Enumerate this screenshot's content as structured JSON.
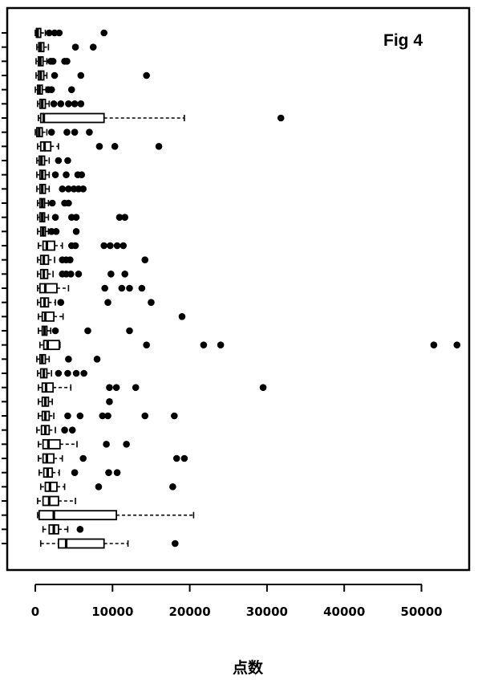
{
  "chart_data": {
    "type": "boxplot",
    "orientation": "horizontal",
    "annotation": "Fig 4",
    "xlabel": "点数",
    "xlim": [
      0,
      55000
    ],
    "xticks": [
      0,
      10000,
      20000,
      30000,
      40000,
      50000
    ],
    "xtick_labels": [
      "0",
      "10000",
      "20000",
      "30000",
      "40000",
      "50000"
    ],
    "grid": false,
    "legend": "none",
    "groups": [
      {
        "whisker_low": 0,
        "q1": 150,
        "median": 300,
        "q3": 700,
        "whisker_high": 1300,
        "outliers": [
          1800,
          2500,
          3100,
          8900
        ]
      },
      {
        "whisker_low": 200,
        "q1": 450,
        "median": 700,
        "q3": 1100,
        "whisker_high": 1700,
        "outliers": [
          5200,
          7500
        ]
      },
      {
        "whisker_low": 100,
        "q1": 400,
        "median": 650,
        "q3": 1000,
        "whisker_high": 1500,
        "outliers": [
          2000,
          2300,
          3800,
          4100
        ]
      },
      {
        "whisker_low": 100,
        "q1": 400,
        "median": 700,
        "q3": 1100,
        "whisker_high": 1500,
        "outliers": [
          2500,
          5900,
          14400
        ]
      },
      {
        "whisker_low": 0,
        "q1": 300,
        "median": 550,
        "q3": 900,
        "whisker_high": 1400,
        "outliers": [
          1700,
          2100,
          4700
        ]
      },
      {
        "whisker_low": 300,
        "q1": 600,
        "median": 900,
        "q3": 1300,
        "whisker_high": 1800,
        "outliers": [
          2400,
          3300,
          4300,
          5100,
          5900
        ]
      },
      {
        "whisker_low": 400,
        "q1": 700,
        "median": 1100,
        "q3": 8900,
        "whisker_high": 19300,
        "outliers": [
          31800
        ]
      },
      {
        "whisker_low": 0,
        "q1": 200,
        "median": 500,
        "q3": 900,
        "whisker_high": 1500,
        "outliers": [
          2100,
          4100,
          5100,
          7000
        ]
      },
      {
        "whisker_low": 300,
        "q1": 700,
        "median": 1200,
        "q3": 2000,
        "whisker_high": 3000,
        "outliers": [
          8300,
          10300,
          16000
        ]
      },
      {
        "whisker_low": 200,
        "q1": 500,
        "median": 800,
        "q3": 1200,
        "whisker_high": 1800,
        "outliers": [
          3000,
          4200
        ]
      },
      {
        "whisker_low": 200,
        "q1": 600,
        "median": 900,
        "q3": 1300,
        "whisker_high": 1800,
        "outliers": [
          2600,
          4000,
          5500,
          6000
        ]
      },
      {
        "whisker_low": 200,
        "q1": 600,
        "median": 900,
        "q3": 1300,
        "whisker_high": 1800,
        "outliers": [
          3500,
          4300,
          5000,
          5600,
          6200
        ]
      },
      {
        "whisker_low": 300,
        "q1": 600,
        "median": 900,
        "q3": 1200,
        "whisker_high": 1700,
        "outliers": [
          2200,
          3800,
          4300
        ]
      },
      {
        "whisker_low": 300,
        "q1": 600,
        "median": 900,
        "q3": 1200,
        "whisker_high": 1700,
        "outliers": [
          2600,
          4700,
          5300,
          10900,
          11600
        ]
      },
      {
        "whisker_low": 300,
        "q1": 700,
        "median": 1000,
        "q3": 1300,
        "whisker_high": 1700,
        "outliers": [
          2100,
          2700,
          5300
        ]
      },
      {
        "whisker_low": 400,
        "q1": 1000,
        "median": 1500,
        "q3": 2500,
        "whisker_high": 3500,
        "outliers": [
          4700,
          5200,
          8900,
          9700,
          10600,
          11400
        ]
      },
      {
        "whisker_low": 300,
        "q1": 700,
        "median": 1100,
        "q3": 1700,
        "whisker_high": 2500,
        "outliers": [
          3500,
          4000,
          4500,
          14200
        ]
      },
      {
        "whisker_low": 300,
        "q1": 700,
        "median": 1100,
        "q3": 1600,
        "whisker_high": 2300,
        "outliers": [
          3500,
          4000,
          4600,
          5600,
          9800,
          11600
        ]
      },
      {
        "whisker_low": 300,
        "q1": 600,
        "median": 1300,
        "q3": 2800,
        "whisker_high": 4300,
        "outliers": [
          9000,
          11200,
          12200,
          13800
        ]
      },
      {
        "whisker_low": 300,
        "q1": 700,
        "median": 1200,
        "q3": 1700,
        "whisker_high": 2600,
        "outliers": [
          3300,
          9400,
          15000
        ]
      },
      {
        "whisker_low": 400,
        "q1": 900,
        "median": 1300,
        "q3": 2400,
        "whisker_high": 3600,
        "outliers": [
          19000
        ]
      },
      {
        "whisker_low": 400,
        "q1": 900,
        "median": 1200,
        "q3": 1500,
        "whisker_high": 2000,
        "outliers": [
          2600,
          6800,
          12200
        ]
      },
      {
        "whisker_low": 600,
        "q1": 1100,
        "median": 1600,
        "q3": 3100,
        "whisker_high": 3200,
        "outliers": [
          14400,
          21800,
          24000,
          51600,
          54600
        ]
      },
      {
        "whisker_low": 200,
        "q1": 600,
        "median": 900,
        "q3": 1300,
        "whisker_high": 1800,
        "outliers": [
          4300,
          8000
        ]
      },
      {
        "whisker_low": 300,
        "q1": 700,
        "median": 1100,
        "q3": 1500,
        "whisker_high": 2100,
        "outliers": [
          3000,
          4200,
          5300,
          6300
        ]
      },
      {
        "whisker_low": 400,
        "q1": 900,
        "median": 1400,
        "q3": 2300,
        "whisker_high": 4600,
        "outliers": [
          9600,
          10500,
          13000,
          29500
        ]
      },
      {
        "whisker_low": 400,
        "q1": 900,
        "median": 1300,
        "q3": 1700,
        "whisker_high": 2200,
        "outliers": [
          9600
        ]
      },
      {
        "whisker_low": 400,
        "q1": 900,
        "median": 1300,
        "q3": 1800,
        "whisker_high": 2400,
        "outliers": [
          4200,
          5800,
          8700,
          9400,
          14200,
          18000
        ]
      },
      {
        "whisker_low": 200,
        "q1": 800,
        "median": 1300,
        "q3": 1800,
        "whisker_high": 2600,
        "outliers": [
          3800,
          4800
        ]
      },
      {
        "whisker_low": 400,
        "q1": 1000,
        "median": 1700,
        "q3": 3200,
        "whisker_high": 5400,
        "outliers": [
          9200,
          11800
        ]
      },
      {
        "whisker_low": 400,
        "q1": 1000,
        "median": 1500,
        "q3": 2400,
        "whisker_high": 3500,
        "outliers": [
          6200,
          18300,
          19300
        ]
      },
      {
        "whisker_low": 500,
        "q1": 1100,
        "median": 1600,
        "q3": 2200,
        "whisker_high": 3100,
        "outliers": [
          5100,
          9500,
          10600
        ]
      },
      {
        "whisker_low": 700,
        "q1": 1300,
        "median": 1900,
        "q3": 2800,
        "whisker_high": 3800,
        "outliers": [
          8200,
          17800
        ]
      },
      {
        "whisker_low": 300,
        "q1": 1000,
        "median": 1800,
        "q3": 3000,
        "whisker_high": 5200,
        "outliers": []
      },
      {
        "whisker_low": 300,
        "q1": 500,
        "median": 2400,
        "q3": 10500,
        "whisker_high": 20500,
        "outliers": []
      },
      {
        "whisker_low": 1000,
        "q1": 1800,
        "median": 2400,
        "q3": 3000,
        "whisker_high": 4200,
        "outliers": [
          5800
        ]
      },
      {
        "whisker_low": 700,
        "q1": 3000,
        "median": 4000,
        "q3": 8900,
        "whisker_high": 12000,
        "outliers": [
          18100
        ]
      }
    ]
  }
}
